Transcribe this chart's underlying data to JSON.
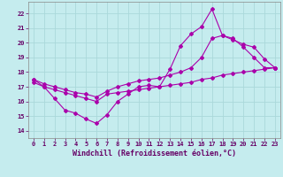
{
  "xlabel": "Windchill (Refroidissement éolien,°C)",
  "background_color": "#c5ecee",
  "grid_color": "#aad8da",
  "line_color": "#aa00aa",
  "spine_color": "#888888",
  "text_color": "#660066",
  "xlim": [
    -0.5,
    23.5
  ],
  "ylim": [
    13.5,
    22.8
  ],
  "xticks": [
    0,
    1,
    2,
    3,
    4,
    5,
    6,
    7,
    8,
    9,
    10,
    11,
    12,
    13,
    14,
    15,
    16,
    17,
    18,
    19,
    20,
    21,
    22,
    23
  ],
  "yticks": [
    14,
    15,
    16,
    17,
    18,
    19,
    20,
    21,
    22
  ],
  "line1_x": [
    0,
    1,
    2,
    3,
    4,
    5,
    6,
    7,
    8,
    9,
    10,
    11,
    12,
    13,
    14,
    15,
    16,
    17,
    18,
    19,
    20,
    21,
    22,
    23
  ],
  "line1_y": [
    17.5,
    17.0,
    16.2,
    15.4,
    15.2,
    14.8,
    14.5,
    15.1,
    16.0,
    16.5,
    17.0,
    17.1,
    17.0,
    18.2,
    19.8,
    20.6,
    21.1,
    22.3,
    20.5,
    20.3,
    19.7,
    19.0,
    18.3,
    18.3
  ],
  "line2_x": [
    0,
    1,
    2,
    3,
    4,
    5,
    6,
    7,
    8,
    9,
    10,
    11,
    12,
    13,
    14,
    15,
    16,
    17,
    18,
    19,
    20,
    21,
    22,
    23
  ],
  "line2_y": [
    17.3,
    17.0,
    16.8,
    16.6,
    16.4,
    16.2,
    16.0,
    16.5,
    16.6,
    16.7,
    16.8,
    16.9,
    17.0,
    17.1,
    17.2,
    17.3,
    17.5,
    17.6,
    17.8,
    17.9,
    18.0,
    18.1,
    18.2,
    18.3
  ],
  "line3_x": [
    0,
    1,
    2,
    3,
    4,
    5,
    6,
    7,
    8,
    9,
    10,
    11,
    12,
    13,
    14,
    15,
    16,
    17,
    18,
    19,
    20,
    21,
    22,
    23
  ],
  "line3_y": [
    17.5,
    17.2,
    17.0,
    16.8,
    16.6,
    16.5,
    16.3,
    16.7,
    17.0,
    17.2,
    17.4,
    17.5,
    17.6,
    17.8,
    18.0,
    18.3,
    19.0,
    20.3,
    20.5,
    20.2,
    19.9,
    19.7,
    18.9,
    18.3
  ],
  "marker": "D",
  "marker_size": 2.0,
  "line_width": 0.8,
  "tick_fontsize": 5.0,
  "xlabel_fontsize": 6.0
}
